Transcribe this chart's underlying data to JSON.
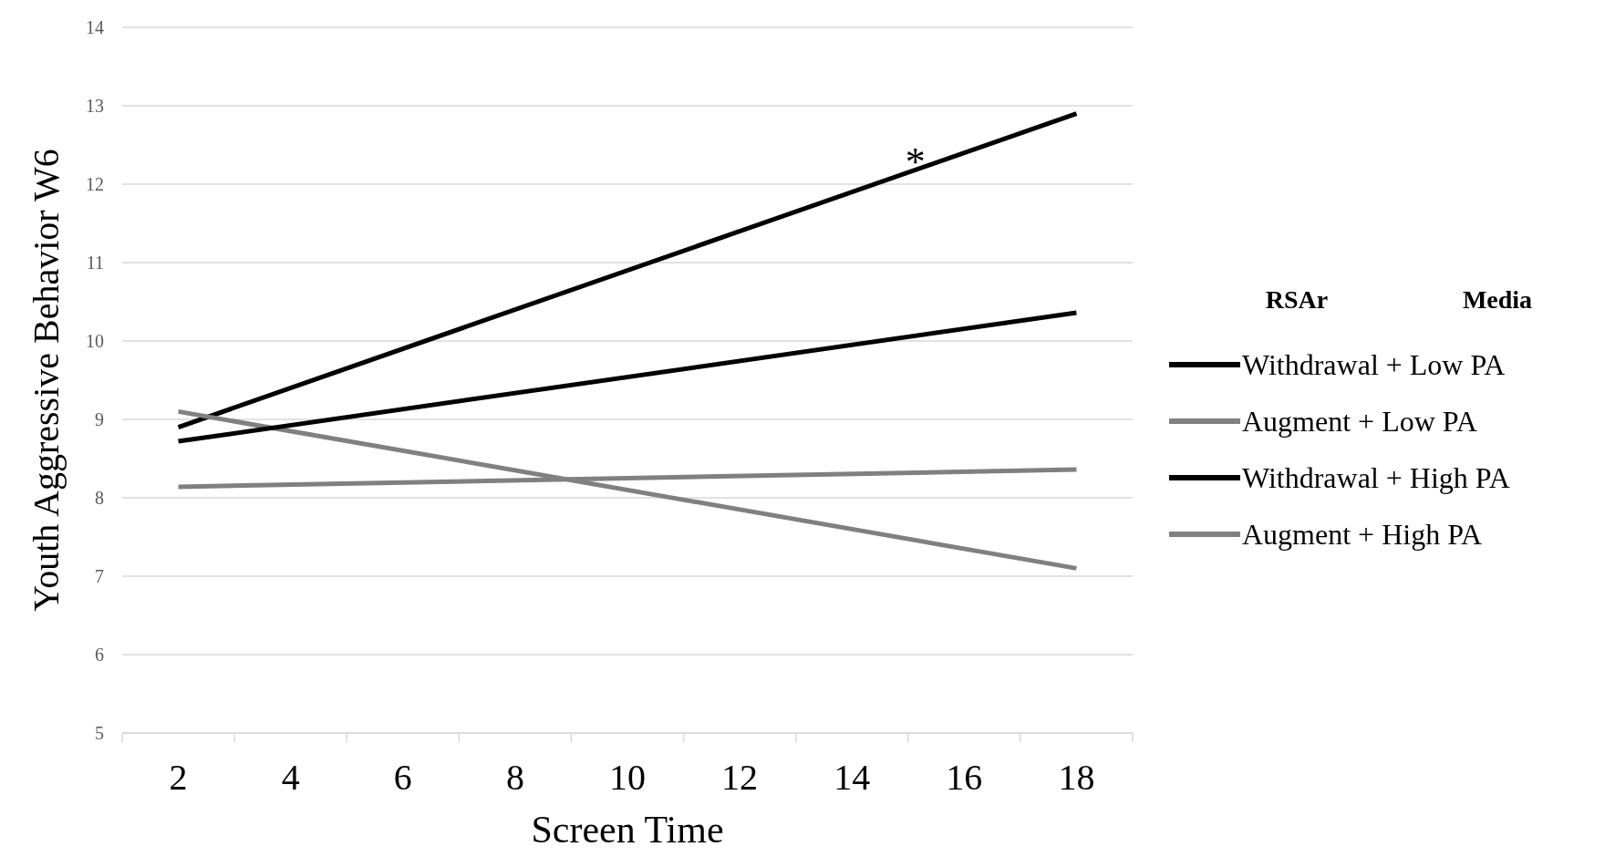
{
  "chart_data": {
    "type": "line",
    "xlabel": "Screen Time",
    "ylabel": "Youth Aggressive Behavior W6",
    "legend_title": "RSAr",
    "x": [
      2,
      18
    ],
    "series": [
      {
        "name": "Withdrawal + Low PA",
        "color": "#000000",
        "values": [
          8.9,
          12.9
        ]
      },
      {
        "name": "Augment + Low PA",
        "color": "#808080",
        "values": [
          9.1,
          7.1
        ]
      },
      {
        "name": "Withdrawal + High PA",
        "color": "#000000",
        "values": [
          8.72,
          10.36
        ]
      },
      {
        "name": "Augment + High PA",
        "color": "#808080",
        "values": [
          8.14,
          8.36
        ]
      }
    ],
    "xlim": [
      1,
      19
    ],
    "xticks": [
      {
        "value": 1,
        "label": null
      },
      2,
      {
        "value": 3,
        "label": null
      },
      4,
      {
        "value": 5,
        "label": null
      },
      6,
      {
        "value": 7,
        "label": null
      },
      8,
      {
        "value": 9,
        "label": null
      },
      10,
      {
        "value": 11,
        "label": null
      },
      12,
      {
        "value": 13,
        "label": null
      },
      14,
      {
        "value": 15,
        "label": null
      },
      16,
      {
        "value": 17,
        "label": null
      },
      18,
      {
        "value": 19,
        "label": null
      }
    ],
    "ylim": [
      5,
      14
    ],
    "yticks": [
      5,
      6,
      7,
      8,
      9,
      10,
      11,
      12,
      13,
      14
    ],
    "grid": "y",
    "legend": "right",
    "marker": "none",
    "line_style": "solid",
    "annotations": [
      "*",
      "Media"
    ]
  }
}
